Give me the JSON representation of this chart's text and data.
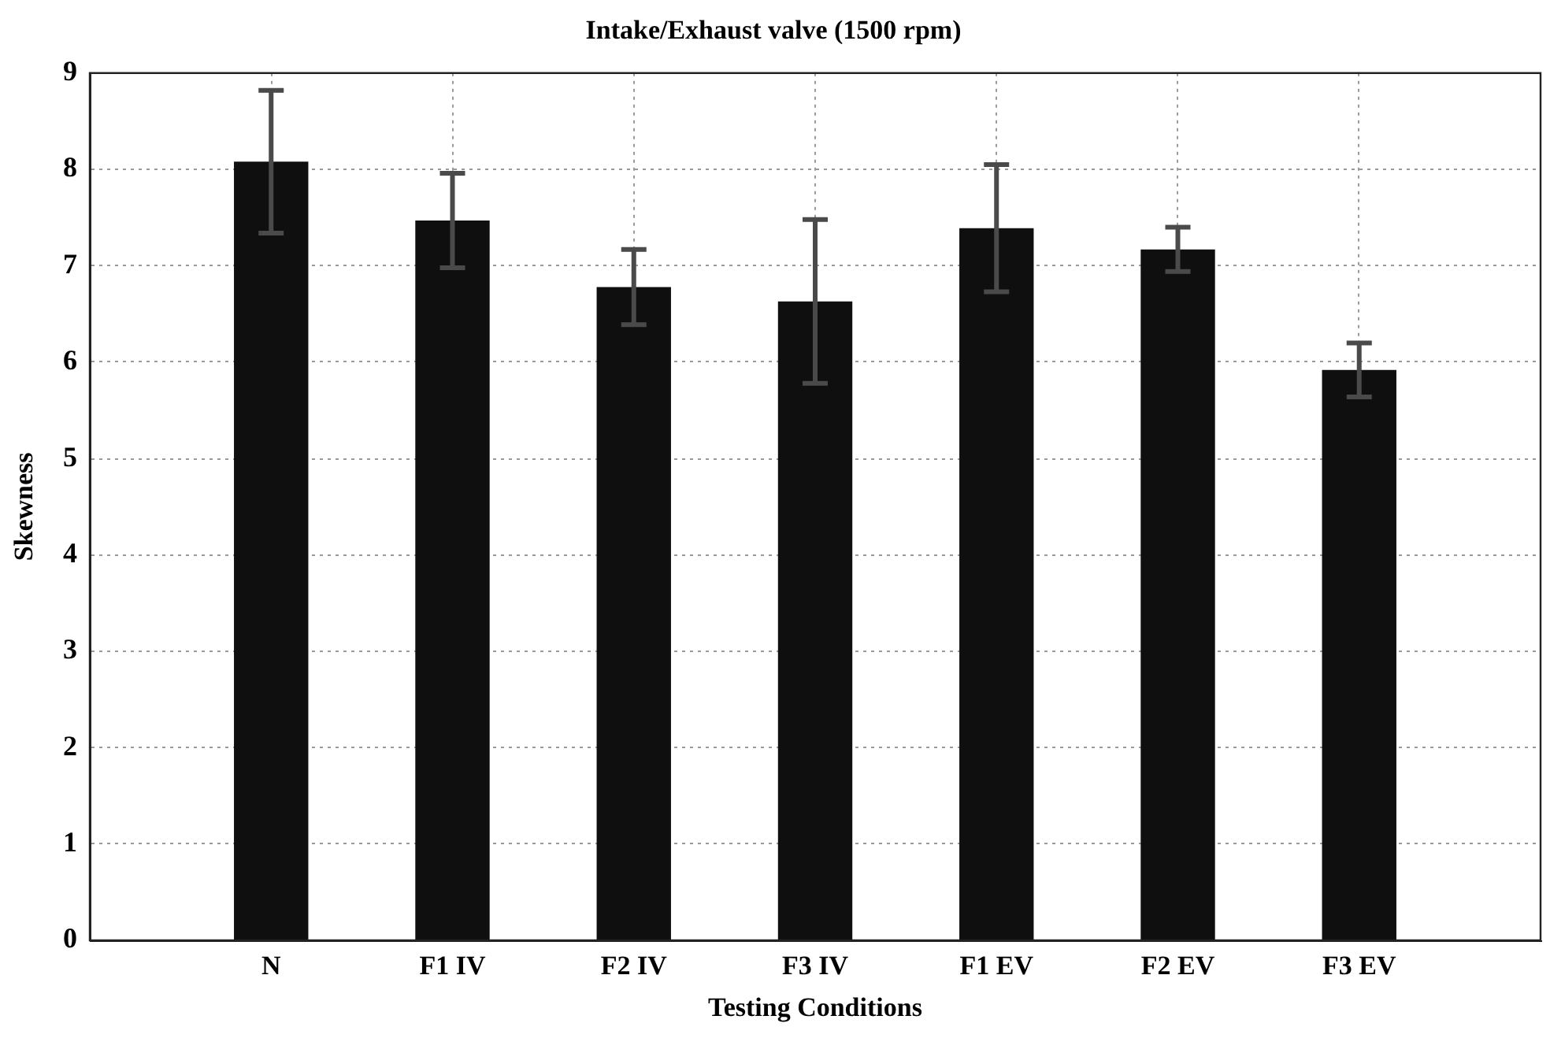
{
  "chart_data": {
    "type": "bar",
    "title": "Intake/Exhaust valve (1500 rpm)",
    "xlabel": "Testing Conditions",
    "ylabel": "Skewness",
    "categories": [
      "N",
      "F1 IV",
      "F2 IV",
      "F3 IV",
      "F1 EV",
      "F2 EV",
      "F3 EV"
    ],
    "values": [
      8.08,
      7.47,
      6.78,
      6.63,
      7.39,
      7.17,
      5.92
    ],
    "errors": [
      0.74,
      0.49,
      0.39,
      0.85,
      0.66,
      0.23,
      0.28
    ],
    "color": "#0f0f0f",
    "ylim": [
      0,
      9
    ],
    "yticks": [
      0,
      1,
      2,
      3,
      4,
      5,
      6,
      7,
      8,
      9
    ],
    "grid": true
  }
}
